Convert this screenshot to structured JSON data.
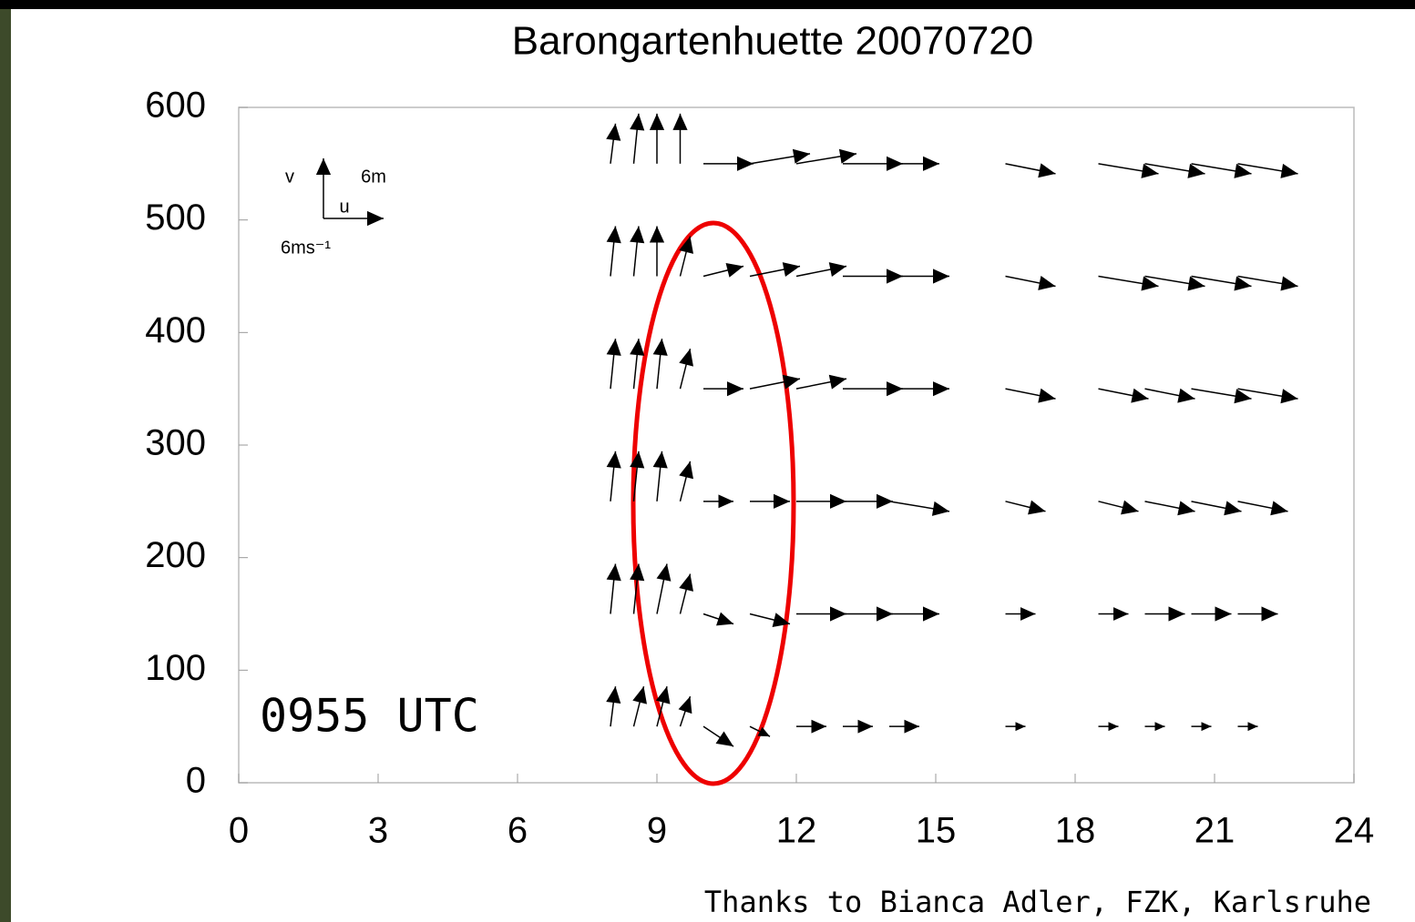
{
  "chart_data": {
    "type": "quiver",
    "title": "Barongartenhuette 20070720",
    "xlim": [
      0,
      24
    ],
    "xticks": [
      0,
      3,
      6,
      9,
      12,
      15,
      18,
      21,
      24
    ],
    "ylim": [
      0,
      600
    ],
    "yticks": [
      0,
      100,
      200,
      300,
      400,
      500,
      600
    ],
    "color": "#000000",
    "reference": {
      "length": 6,
      "v_label": "v",
      "u_label": "u",
      "v_text": "6m",
      "u_text": "6ms⁻¹"
    },
    "annotation": "0955 UTC",
    "credit": "Thanks to Bianca Adler, FZK, Karlsruhe",
    "heights": [
      50,
      150,
      250,
      350,
      450,
      550
    ],
    "vectors": [
      {
        "x": 8,
        "u": [
          0.5,
          0.5,
          0.5,
          0.5,
          0.5,
          0.5
        ],
        "v": [
          4,
          5,
          5,
          5,
          5,
          4
        ]
      },
      {
        "x": 8.5,
        "u": [
          1,
          0.5,
          0.5,
          0.5,
          0.5,
          0.5
        ],
        "v": [
          4,
          5,
          5,
          5,
          5,
          5
        ]
      },
      {
        "x": 9,
        "u": [
          1,
          1,
          0.5,
          0.5,
          0,
          0
        ],
        "v": [
          4,
          5,
          5,
          5,
          5,
          5
        ]
      },
      {
        "x": 9.5,
        "u": [
          1,
          1,
          1,
          1,
          1,
          0
        ],
        "v": [
          3,
          4,
          4,
          4,
          4,
          5
        ]
      },
      {
        "x": 10,
        "u": [
          3,
          3,
          3,
          4,
          4,
          5
        ],
        "v": [
          -2,
          -1,
          0,
          0,
          1,
          0
        ]
      },
      {
        "x": 11,
        "u": [
          2,
          4,
          4,
          5,
          5,
          6
        ],
        "v": [
          -1,
          -1,
          0,
          1,
          1,
          1
        ]
      },
      {
        "x": 12,
        "u": [
          3,
          5,
          5,
          5,
          5,
          6
        ],
        "v": [
          0,
          0,
          0,
          1,
          1,
          1
        ]
      },
      {
        "x": 13,
        "u": [
          3,
          5,
          5,
          6,
          6,
          6
        ],
        "v": [
          0,
          0,
          0,
          0,
          0,
          0
        ]
      },
      {
        "x": 14,
        "u": [
          3,
          5,
          6,
          6,
          6,
          5
        ],
        "v": [
          0,
          0,
          -1,
          0,
          0,
          0
        ]
      },
      {
        "x": 16.5,
        "u": [
          2,
          3,
          4,
          5,
          5,
          5
        ],
        "v": [
          0,
          0,
          -1,
          -1,
          -1,
          -1
        ]
      },
      {
        "x": 18.5,
        "u": [
          2,
          3,
          4,
          5,
          6,
          6
        ],
        "v": [
          0,
          0,
          -1,
          -1,
          -1,
          -1
        ]
      },
      {
        "x": 19.5,
        "u": [
          2,
          4,
          5,
          5,
          6,
          6
        ],
        "v": [
          0,
          0,
          -1,
          -1,
          -1,
          -1
        ]
      },
      {
        "x": 20.5,
        "u": [
          2,
          4,
          5,
          6,
          6,
          6
        ],
        "v": [
          0,
          0,
          -1,
          -1,
          -1,
          -1
        ]
      },
      {
        "x": 21.5,
        "u": [
          2,
          4,
          5,
          6,
          6,
          6
        ],
        "v": [
          0,
          0,
          -1,
          -1,
          -1,
          -1
        ]
      }
    ]
  }
}
